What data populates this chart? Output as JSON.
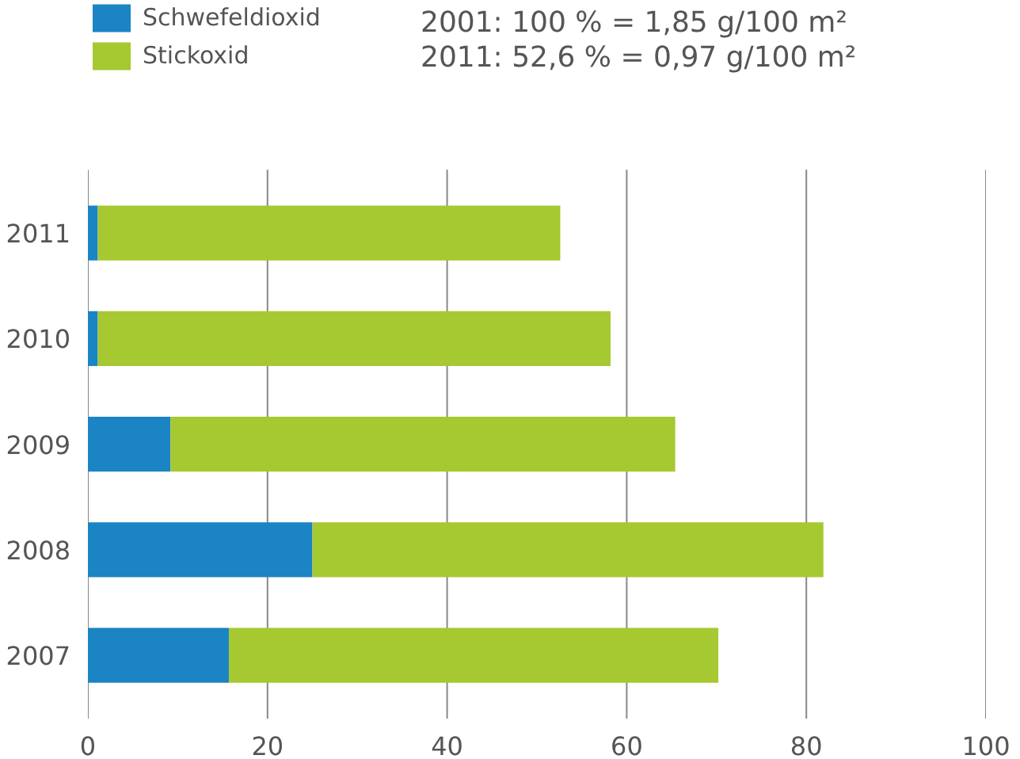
{
  "chart_data": {
    "type": "bar",
    "orientation": "horizontal",
    "stacked": true,
    "categories": [
      "2011",
      "2010",
      "2009",
      "2008",
      "2007"
    ],
    "series": [
      {
        "name": "Schwefeldioxid",
        "color": "#1a84c4",
        "values": [
          1.1,
          1.1,
          9.2,
          25.0,
          15.7
        ]
      },
      {
        "name": "Stickoxid",
        "color": "#a6c831",
        "values": [
          51.5,
          57.1,
          56.2,
          56.9,
          54.5
        ]
      }
    ],
    "xlim": [
      0,
      100
    ],
    "xticks": [
      0,
      20,
      40,
      60,
      80,
      100
    ],
    "grid": "x",
    "legend": "top left",
    "annotations": [
      "2001: 100 % = 1,85 g/100 m²",
      "2011: 52,6 % = 0,97 g/100 m²"
    ]
  }
}
